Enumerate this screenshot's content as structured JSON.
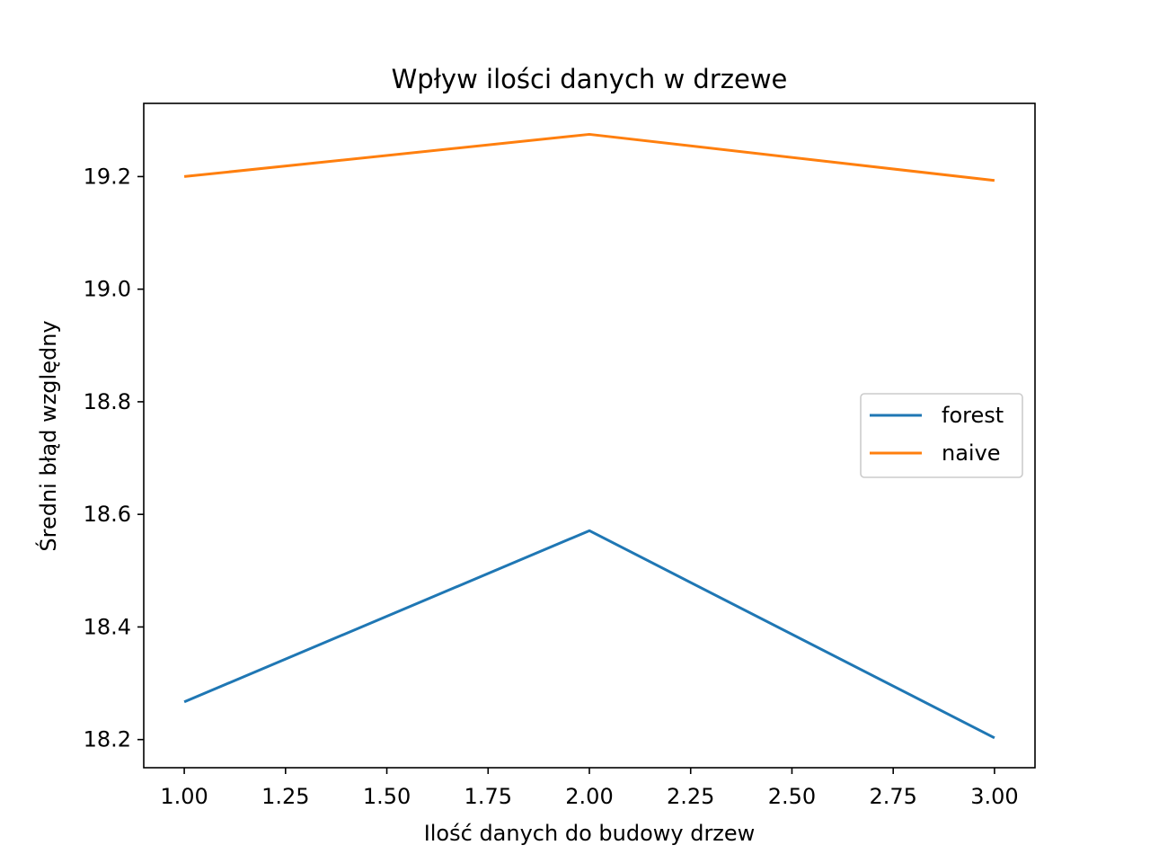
{
  "chart_data": {
    "type": "line",
    "title": "Wpływ ilości danych w drzewe",
    "xlabel": "Ilość danych do budowy drzew",
    "ylabel": "Średni błąd względny",
    "x": [
      1.0,
      2.0,
      3.0
    ],
    "series": [
      {
        "name": "forest",
        "color": "#1f77b4",
        "values": [
          18.267,
          18.571,
          18.203
        ]
      },
      {
        "name": "naive",
        "color": "#ff7f0e",
        "values": [
          19.2,
          19.275,
          19.193
        ]
      }
    ],
    "xlim": [
      0.9,
      3.1
    ],
    "ylim": [
      18.15,
      19.33
    ],
    "xticks": [
      1.0,
      1.25,
      1.5,
      1.75,
      2.0,
      2.25,
      2.5,
      2.75,
      3.0
    ],
    "xtick_labels": [
      "1.00",
      "1.25",
      "1.50",
      "1.75",
      "2.00",
      "2.25",
      "2.50",
      "2.75",
      "3.00"
    ],
    "yticks": [
      18.2,
      18.4,
      18.6,
      18.8,
      19.0,
      19.2
    ],
    "ytick_labels": [
      "18.2",
      "18.4",
      "18.6",
      "18.8",
      "19.0",
      "19.2"
    ],
    "grid": false,
    "legend_position": "center-right"
  }
}
